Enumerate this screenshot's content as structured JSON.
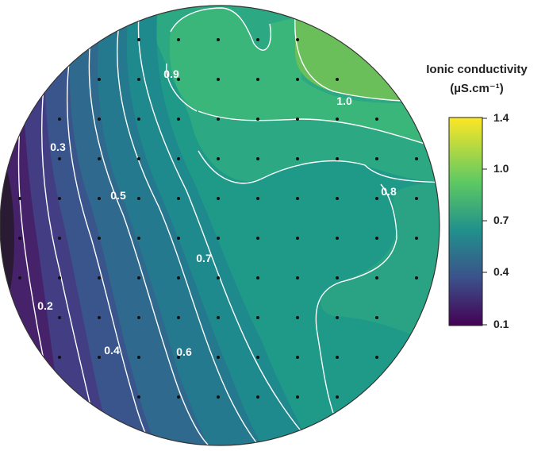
{
  "chart_data": {
    "type": "heatmap",
    "title": "",
    "colorbar": {
      "title_line1": "Ionic conductivity",
      "title_line2": "(µS.cm⁻¹)",
      "ticks": [
        "1.4",
        "1.0",
        "0.7",
        "0.4",
        "0.1"
      ],
      "range": [
        0.1,
        1.4
      ]
    },
    "contour_labels": [
      "0.9",
      "1.0",
      "0.3",
      "0.5",
      "0.8",
      "0.7",
      "0.2",
      "0.4",
      "0.6"
    ],
    "colormap": [
      "#440154",
      "#3b528b",
      "#21918c",
      "#5ec962",
      "#fde725"
    ],
    "line_color": "#ffffff",
    "dot_color": "#111111"
  }
}
